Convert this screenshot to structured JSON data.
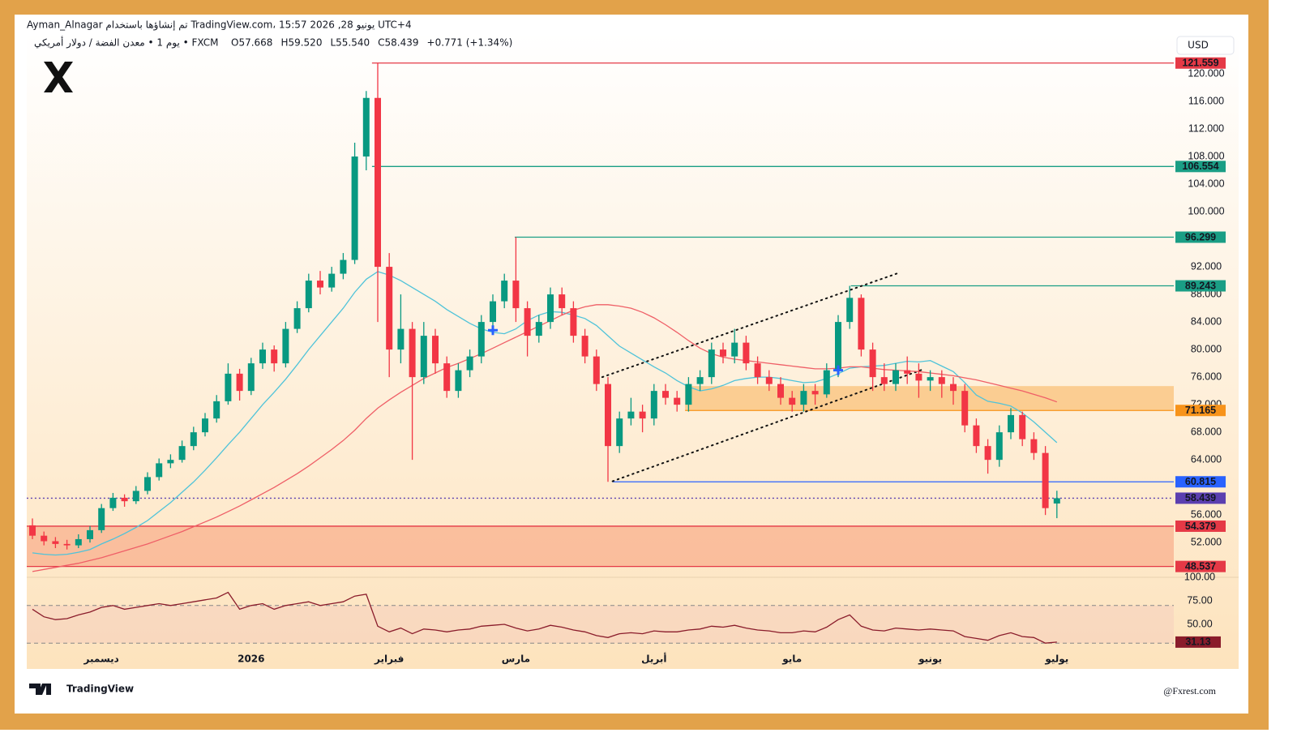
{
  "header": {
    "line1": "Ayman_Alnagar تم إنشاؤها باستخدام TradingView.com، 15:57 2026 ,28 يونيو UTC+4",
    "symbol": "يوم 1 • معدن الفضة / دولار أمريكي • FXCM",
    "ohlc": [
      "O57.668",
      "H59.520",
      "L55.540",
      "C58.439",
      "+0.771 (+1.34%)"
    ]
  },
  "currency": "USD",
  "brand": "TradingView",
  "watermark": "@Fxrest.com",
  "chart_data": {
    "type": "candlestick",
    "categories": [
      null,
      null,
      null,
      null,
      null,
      null,
      "ديسمبر",
      null,
      null,
      null,
      null,
      null,
      null,
      null,
      null,
      null,
      null,
      null,
      null,
      "2026",
      null,
      null,
      null,
      null,
      null,
      null,
      null,
      null,
      null,
      null,
      null,
      "فبراير",
      null,
      null,
      null,
      null,
      null,
      null,
      null,
      null,
      null,
      null,
      "مارس",
      null,
      null,
      null,
      null,
      null,
      null,
      null,
      null,
      null,
      null,
      null,
      "أبريل",
      null,
      null,
      null,
      null,
      null,
      null,
      null,
      null,
      null,
      null,
      null,
      "مايو",
      null,
      null,
      null,
      null,
      null,
      null,
      null,
      null,
      null,
      null,
      null,
      "يونيو",
      null,
      null,
      null,
      null,
      null,
      null,
      null,
      null,
      null,
      null,
      "يوليو"
    ],
    "candles": [
      [
        54.5,
        55.5,
        52.5,
        53.0
      ],
      [
        53.0,
        53.6,
        51.6,
        52.2
      ],
      [
        52.2,
        52.8,
        51.2,
        51.8
      ],
      [
        51.8,
        52.4,
        51.0,
        51.6
      ],
      [
        51.6,
        53.2,
        51.2,
        52.5
      ],
      [
        52.5,
        54.4,
        52.0,
        53.8
      ],
      [
        53.8,
        57.6,
        53.4,
        57.0
      ],
      [
        57.0,
        59.2,
        56.6,
        58.5
      ],
      [
        58.5,
        59.0,
        57.2,
        58.0
      ],
      [
        58.0,
        60.2,
        57.6,
        59.5
      ],
      [
        59.5,
        62.2,
        59.0,
        61.5
      ],
      [
        61.5,
        64.2,
        61.0,
        63.5
      ],
      [
        63.5,
        64.8,
        62.8,
        64.0
      ],
      [
        64.0,
        66.8,
        63.6,
        66.0
      ],
      [
        66.0,
        68.8,
        65.4,
        68.0
      ],
      [
        68.0,
        70.8,
        67.4,
        70.0
      ],
      [
        70.0,
        73.4,
        69.4,
        72.5
      ],
      [
        72.5,
        78.0,
        72.0,
        76.5
      ],
      [
        76.5,
        77.2,
        72.6,
        74.0
      ],
      [
        74.0,
        78.8,
        73.4,
        78.0
      ],
      [
        78.0,
        81.0,
        77.2,
        80.0
      ],
      [
        80.0,
        80.6,
        76.8,
        78.0
      ],
      [
        78.0,
        84.0,
        77.4,
        83.0
      ],
      [
        83.0,
        87.0,
        82.4,
        86.0
      ],
      [
        86.0,
        91.0,
        85.4,
        90.0
      ],
      [
        90.0,
        91.4,
        88.0,
        89.0
      ],
      [
        89.0,
        92.0,
        88.4,
        91.0
      ],
      [
        91.0,
        94.0,
        90.2,
        93.0
      ],
      [
        93.0,
        110.0,
        92.4,
        108.0
      ],
      [
        108.0,
        117.5,
        106.0,
        116.5
      ],
      [
        116.5,
        121.559,
        84.0,
        92.0
      ],
      [
        92.0,
        94.0,
        76.0,
        80.0
      ],
      [
        80.0,
        88.0,
        78.0,
        83.0
      ],
      [
        83.0,
        84.0,
        64.0,
        76.0
      ],
      [
        76.0,
        84.0,
        75.0,
        82.0
      ],
      [
        82.0,
        83.0,
        76.5,
        78.0
      ],
      [
        78.0,
        79.0,
        73.0,
        74.0
      ],
      [
        74.0,
        78.0,
        73.0,
        77.0
      ],
      [
        77.0,
        80.0,
        76.0,
        79.0
      ],
      [
        79.0,
        85.0,
        78.0,
        84.0
      ],
      [
        84.0,
        88.0,
        83.0,
        87.0
      ],
      [
        87.0,
        91.0,
        86.0,
        90.0
      ],
      [
        90.0,
        96.299,
        84.0,
        86.0
      ],
      [
        86.0,
        87.0,
        79.0,
        82.0
      ],
      [
        82.0,
        85.0,
        81.0,
        84.0
      ],
      [
        84.0,
        89.0,
        83.0,
        88.0
      ],
      [
        88.0,
        89.0,
        85.0,
        86.0
      ],
      [
        86.0,
        87.0,
        81.0,
        82.0
      ],
      [
        82.0,
        83.0,
        78.0,
        79.0
      ],
      [
        79.0,
        80.0,
        74.0,
        75.0
      ],
      [
        75.0,
        76.0,
        60.815,
        66.0
      ],
      [
        66.0,
        71.0,
        65.0,
        70.0
      ],
      [
        70.0,
        73.0,
        69.0,
        71.0
      ],
      [
        71.0,
        72.0,
        68.0,
        70.0
      ],
      [
        70.0,
        75.0,
        69.0,
        74.0
      ],
      [
        74.0,
        75.0,
        72.0,
        73.0
      ],
      [
        73.0,
        74.0,
        71.0,
        72.0
      ],
      [
        72.0,
        76.0,
        71.0,
        75.0
      ],
      [
        75.0,
        77.0,
        74.0,
        76.0
      ],
      [
        76.0,
        81.0,
        75.0,
        80.0
      ],
      [
        80.0,
        81.0,
        78.0,
        79.0
      ],
      [
        79.0,
        83.0,
        78.0,
        81.0
      ],
      [
        81.0,
        82.0,
        77.0,
        78.0
      ],
      [
        78.0,
        79.0,
        75.0,
        76.0
      ],
      [
        76.0,
        77.0,
        74.0,
        75.0
      ],
      [
        75.0,
        76.0,
        72.0,
        73.0
      ],
      [
        73.0,
        74.0,
        71.0,
        72.0
      ],
      [
        72.0,
        75.0,
        71.0,
        74.0
      ],
      [
        74.0,
        75.0,
        72.0,
        73.5
      ],
      [
        73.5,
        78.0,
        73.0,
        77.0
      ],
      [
        77.0,
        85.0,
        76.0,
        84.0
      ],
      [
        84.0,
        89.243,
        83.0,
        87.5
      ],
      [
        87.5,
        88.0,
        79.0,
        80.0
      ],
      [
        80.0,
        81.0,
        74.0,
        76.0
      ],
      [
        76.0,
        78.0,
        74.0,
        75.0
      ],
      [
        75.0,
        78.0,
        74.0,
        77.0
      ],
      [
        77.0,
        79.0,
        75.0,
        76.5
      ],
      [
        76.5,
        78.0,
        73.0,
        75.5
      ],
      [
        75.5,
        77.0,
        74.0,
        76.0
      ],
      [
        76.0,
        77.0,
        73.0,
        75.0
      ],
      [
        75.0,
        76.0,
        72.0,
        74.0
      ],
      [
        74.0,
        75.0,
        68.0,
        69.0
      ],
      [
        69.0,
        70.0,
        65.0,
        66.0
      ],
      [
        66.0,
        67.0,
        62.0,
        64.0
      ],
      [
        64.0,
        69.0,
        63.0,
        68.0
      ],
      [
        68.0,
        71.5,
        67.0,
        70.5
      ],
      [
        70.5,
        71.0,
        66.0,
        67.0
      ],
      [
        67.0,
        68.0,
        64.0,
        65.0
      ],
      [
        65.0,
        66.0,
        56.0,
        57.0
      ],
      [
        57.668,
        59.52,
        55.54,
        58.439
      ]
    ],
    "up_color": "#089981",
    "down_color": "#f23645",
    "series": [
      {
        "color": "#4fc3d9",
        "values": [
          50.5,
          50.3,
          50.2,
          50.3,
          50.6,
          51.0,
          51.8,
          52.5,
          53.3,
          54.2,
          55.2,
          56.5,
          57.8,
          59.3,
          60.8,
          62.5,
          64.3,
          66.2,
          68.0,
          70.0,
          72.0,
          73.8,
          75.7,
          77.8,
          80.0,
          82.0,
          84.0,
          86.0,
          88.3,
          90.2,
          91.3,
          90.8,
          90.0,
          89.0,
          88.0,
          87.0,
          85.8,
          84.8,
          83.8,
          83.0,
          82.5,
          82.3,
          83.0,
          84.2,
          85.0,
          85.5,
          85.4,
          85.0,
          84.5,
          83.5,
          82.0,
          80.5,
          79.5,
          78.5,
          77.5,
          76.6,
          75.5,
          74.6,
          74.0,
          74.3,
          74.8,
          75.5,
          75.8,
          76.0,
          76.0,
          75.8,
          75.5,
          75.2,
          75.3,
          75.8,
          76.5,
          77.3,
          77.5,
          77.6,
          77.7,
          78.0,
          78.3,
          78.2,
          78.4,
          77.6,
          76.8,
          75.2,
          73.4,
          72.5,
          72.2,
          71.8,
          70.8,
          69.5,
          68.0,
          66.5
        ]
      },
      {
        "color": "#ef5f67",
        "values": [
          47.8,
          48.1,
          48.4,
          48.7,
          49.0,
          49.4,
          49.8,
          50.3,
          50.8,
          51.3,
          51.8,
          52.4,
          53.0,
          53.6,
          54.3,
          55.0,
          55.7,
          56.5,
          57.3,
          58.2,
          59.1,
          60.0,
          61.0,
          62.0,
          63.1,
          64.3,
          65.5,
          66.8,
          68.3,
          70.0,
          71.5,
          72.7,
          73.8,
          74.8,
          75.8,
          76.6,
          77.4,
          78.0,
          78.7,
          79.4,
          80.2,
          81.0,
          81.8,
          82.6,
          83.4,
          84.2,
          85.0,
          85.7,
          86.2,
          86.5,
          86.5,
          86.3,
          86.0,
          85.4,
          84.6,
          83.6,
          82.5,
          81.3,
          80.2,
          79.4,
          78.9,
          78.6,
          78.4,
          78.2,
          78.0,
          77.8,
          77.6,
          77.4,
          77.2,
          77.2,
          77.3,
          77.5,
          77.5,
          77.3,
          77.1,
          77.0,
          76.9,
          76.8,
          76.6,
          76.4,
          76.2,
          75.9,
          75.6,
          75.2,
          74.8,
          74.4,
          74.0,
          73.5,
          73.0,
          72.4
        ]
      }
    ],
    "signals": {
      "color": "#2962ff",
      "values": [
        null,
        null,
        null,
        null,
        null,
        null,
        null,
        null,
        null,
        null,
        null,
        null,
        null,
        null,
        null,
        null,
        null,
        null,
        null,
        null,
        null,
        null,
        null,
        null,
        null,
        null,
        null,
        null,
        null,
        null,
        null,
        null,
        null,
        null,
        null,
        null,
        null,
        null,
        null,
        null,
        82.8,
        null,
        null,
        null,
        null,
        null,
        null,
        null,
        null,
        null,
        null,
        null,
        null,
        null,
        null,
        null,
        null,
        null,
        null,
        null,
        null,
        null,
        null,
        null,
        null,
        null,
        null,
        null,
        null,
        null,
        77.0,
        null,
        null,
        null,
        null,
        null,
        null,
        null,
        null,
        null,
        null,
        null,
        null,
        null,
        null,
        null,
        null,
        null,
        null,
        null
      ]
    },
    "levels": [
      {
        "value": 121.559,
        "color": "#e53946",
        "from": 29.5
      },
      {
        "value": 106.554,
        "color": "#1a9e85",
        "from": 29.5
      },
      {
        "value": 96.299,
        "color": "#1a9e85",
        "from": 41.9
      },
      {
        "value": 89.243,
        "color": "#1a9e85",
        "from": 71.1
      },
      {
        "value": 71.165,
        "color": "#f7931a",
        "from": 56.7
      },
      {
        "value": 60.815,
        "color": "#2962ff",
        "from": 50.4
      },
      {
        "value": 58.439,
        "color": "#5b3fb0",
        "from": -0.5
      },
      {
        "value": 54.379,
        "color": "#e53946",
        "from": -0.5
      },
      {
        "value": 48.537,
        "color": "#e53946",
        "from": -0.5
      }
    ],
    "zones": [
      {
        "range": [
          71.165,
          74.7
        ],
        "color": "#f9c27a",
        "from": 56.7
      },
      {
        "range": [
          48.537,
          54.379
        ],
        "color": "#f8b08e",
        "from": -0.5
      }
    ],
    "trendlines": [
      {
        "x": [
          49.5,
          75.4
        ],
        "y": [
          76.0,
          91.2
        ]
      },
      {
        "x": [
          50.4,
          77.5
        ],
        "y": [
          60.9,
          77.2
        ]
      }
    ],
    "ylim": [
      47.2,
      122.47
    ],
    "yticks": [
      {
        "value": 52,
        "label": "52.000"
      },
      {
        "value": 56,
        "label": "56.000"
      },
      {
        "value": 64,
        "label": "64.000"
      },
      {
        "value": 68,
        "label": "68.000"
      },
      {
        "value": 72,
        "label": "72.000"
      },
      {
        "value": 76,
        "label": "76.000"
      },
      {
        "value": 80,
        "label": "80.000"
      },
      {
        "value": 84,
        "label": "84.000"
      },
      {
        "value": 88,
        "label": "88.000"
      },
      {
        "value": 92,
        "label": "92.000"
      },
      {
        "value": 100,
        "label": "100.000"
      },
      {
        "value": 104,
        "label": "104.000"
      },
      {
        "value": 108,
        "label": "108.000"
      },
      {
        "value": 112,
        "label": "112.000"
      },
      {
        "value": 116,
        "label": "116.000"
      },
      {
        "value": 120,
        "label": "120.000"
      }
    ],
    "rsi": {
      "color": "#8a1c2b",
      "values": [
        66,
        58,
        55,
        56,
        60,
        63,
        68,
        70,
        66,
        68,
        70,
        72,
        70,
        72,
        74,
        76,
        78,
        84,
        66,
        70,
        72,
        66,
        70,
        72,
        74,
        70,
        72,
        74,
        80,
        82,
        48,
        42,
        46,
        40,
        45,
        44,
        42,
        44,
        45,
        48,
        49,
        50,
        46,
        43,
        45,
        49,
        47,
        44,
        42,
        38,
        36,
        40,
        41,
        40,
        43,
        42,
        42,
        44,
        45,
        48,
        47,
        49,
        46,
        44,
        43,
        41,
        41,
        43,
        42,
        47,
        55,
        60,
        48,
        44,
        43,
        46,
        45,
        44,
        45,
        44,
        43,
        37,
        35,
        33,
        38,
        41,
        37,
        36,
        30,
        31.13
      ],
      "ylim": [
        2.6,
        100
      ],
      "bands": [
        30,
        70
      ],
      "yticks": [
        {
          "value": 100,
          "label": "100.00"
        },
        {
          "value": 75,
          "label": "75.00"
        },
        {
          "value": 50,
          "label": "50.00"
        }
      ]
    }
  }
}
